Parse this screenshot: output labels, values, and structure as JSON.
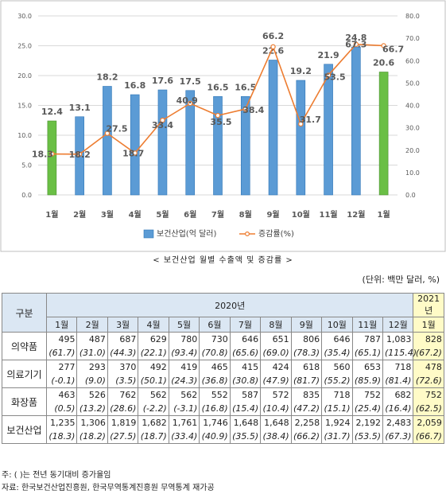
{
  "chart_data": {
    "type": "bar",
    "categories": [
      "1월",
      "2월",
      "3월",
      "4월",
      "5월",
      "6월",
      "7월",
      "8월",
      "9월",
      "10월",
      "11월",
      "12월",
      "1월"
    ],
    "series": [
      {
        "name": "보건산업(억 달러)",
        "type": "bar",
        "axis": "left",
        "values": [
          12.4,
          13.1,
          18.2,
          16.8,
          17.6,
          17.5,
          16.5,
          16.5,
          22.6,
          19.2,
          21.9,
          24.8,
          20.6
        ],
        "highlight_indices": [
          0,
          12
        ]
      },
      {
        "name": "증감률(%)",
        "type": "line",
        "axis": "right",
        "values": [
          18.3,
          18.2,
          27.5,
          18.7,
          33.4,
          40.9,
          35.5,
          38.4,
          66.2,
          31.7,
          53.5,
          67.3,
          66.7
        ]
      }
    ],
    "left_axis": {
      "ylim": [
        0,
        30
      ],
      "ticks": [
        "0.0",
        "5.0",
        "10.0",
        "15.0",
        "20.0",
        "25.0",
        "30.0"
      ]
    },
    "right_axis": {
      "ylim": [
        0,
        80
      ],
      "ticks": [
        "0.0",
        "10.0",
        "20.0",
        "30.0",
        "40.0",
        "50.0",
        "60.0",
        "70.0",
        "80.0"
      ]
    },
    "bar_labels": [
      "12.4",
      "13.1",
      "18.2",
      "16.8",
      "17.6",
      "17.5",
      "16.5",
      "16.5",
      "22.6",
      "19.2",
      "21.9",
      "24.8",
      "20.6"
    ],
    "line_labels": [
      "18.3",
      "18.2",
      "27.5",
      "18.7",
      "33.4",
      "40.9",
      "35.5",
      "38.4",
      "66.2",
      "31.7",
      "53.5",
      "67.3",
      "66.7"
    ],
    "legend": [
      "보건산업(억 달러)",
      "증감률(%)"
    ],
    "legend_position": "bottom",
    "colors": {
      "bar": "#5b9bd5",
      "bar_highlight": "#6abf45",
      "line": "#ed7d31"
    },
    "grid": true
  },
  "caption": "< 보건산업 월별 수출액 및 증감률 >",
  "unit": "(단위: 백만 달러, %)",
  "table": {
    "corner": "구분",
    "year_2020": "2020년",
    "year_2021": "2021년",
    "months": [
      "1월",
      "2월",
      "3월",
      "4월",
      "5월",
      "6월",
      "7월",
      "8월",
      "9월",
      "10월",
      "11월",
      "12월",
      "1월"
    ],
    "rows": [
      {
        "label": "의약품",
        "values": [
          "495",
          "487",
          "687",
          "629",
          "780",
          "730",
          "646",
          "651",
          "806",
          "646",
          "787",
          "1,083",
          "828"
        ],
        "growth": [
          "(61.7)",
          "(31.0)",
          "(44.3)",
          "(22.1)",
          "(93.4)",
          "(70.8)",
          "(65.6)",
          "(69.0)",
          "(78.3)",
          "(35.4)",
          "(65.1)",
          "(115.4)",
          "(67.2)"
        ]
      },
      {
        "label": "의료기기",
        "values": [
          "277",
          "293",
          "370",
          "492",
          "419",
          "465",
          "415",
          "424",
          "618",
          "560",
          "653",
          "718",
          "478"
        ],
        "growth": [
          "(-0.1)",
          "(9.0)",
          "(3.5)",
          "(50.1)",
          "(24.3)",
          "(36.8)",
          "(30.8)",
          "(47.9)",
          "(81.7)",
          "(55.2)",
          "(85.9)",
          "(81.4)",
          "(72.6)"
        ]
      },
      {
        "label": "화장품",
        "values": [
          "463",
          "526",
          "762",
          "562",
          "562",
          "552",
          "587",
          "572",
          "835",
          "718",
          "752",
          "682",
          "752"
        ],
        "growth": [
          "(0.5)",
          "(13.2)",
          "(28.6)",
          "(-2.2)",
          "(-3.1)",
          "(16.8)",
          "(15.4)",
          "(10.4)",
          "(47.2)",
          "(15.1)",
          "(25.4)",
          "(16.4)",
          "(62.5)"
        ]
      },
      {
        "label": "보건산업",
        "values": [
          "1,235",
          "1,306",
          "1,819",
          "1,682",
          "1,761",
          "1,746",
          "1,648",
          "1,648",
          "2,258",
          "1,924",
          "2,192",
          "2,483",
          "2,059"
        ],
        "growth": [
          "(18.3)",
          "(18.2)",
          "(27.5)",
          "(18.7)",
          "(33.4)",
          "(40.9)",
          "(35.5)",
          "(38.4)",
          "(66.2)",
          "(31.7)",
          "(53.5)",
          "(67.3)",
          "(66.7)"
        ]
      }
    ]
  },
  "notes": {
    "note1": "주: (  )는 전년 동기대비 증가율임",
    "source": "자료: 한국보건산업진흥원, 한국무역통계진흥원 무역통계 재가공"
  }
}
